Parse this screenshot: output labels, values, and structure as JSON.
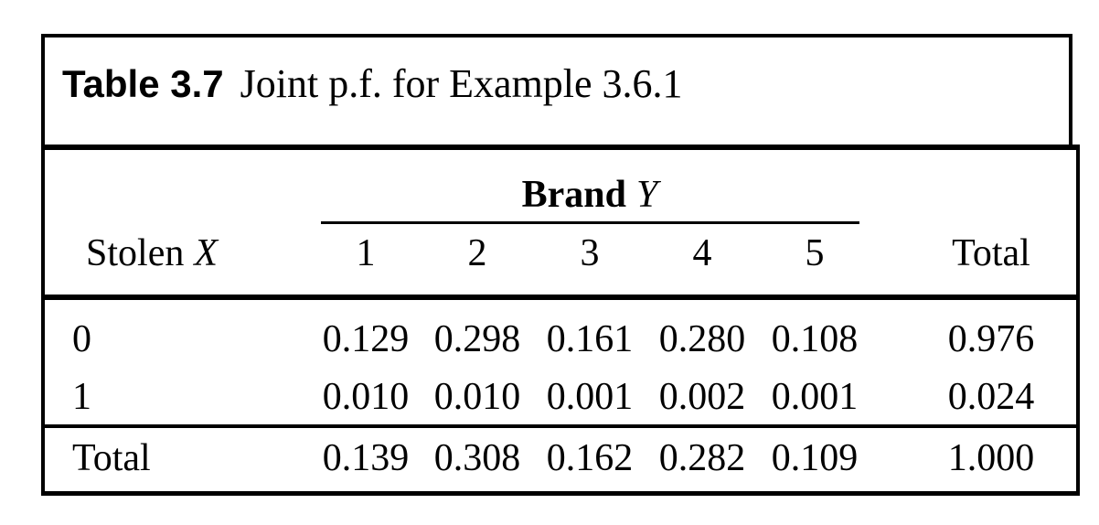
{
  "colors": {
    "ink": "#000000",
    "paper": "#ffffff"
  },
  "caption": {
    "label": "Table 3.7",
    "text": "Joint p.f. for Example 3.6.1"
  },
  "table": {
    "group_header": {
      "word": "Brand",
      "variable": "Y"
    },
    "row_header": {
      "word": "Stolen",
      "variable": "X"
    },
    "columns": [
      "1",
      "2",
      "3",
      "4",
      "5"
    ],
    "total_column_label": "Total",
    "rows": [
      {
        "label": "0",
        "values": [
          "0.129",
          "0.298",
          "0.161",
          "0.280",
          "0.108"
        ],
        "total": "0.976"
      },
      {
        "label": "1",
        "values": [
          "0.010",
          "0.010",
          "0.001",
          "0.002",
          "0.001"
        ],
        "total": "0.024"
      }
    ],
    "totals_row": {
      "label": "Total",
      "values": [
        "0.139",
        "0.308",
        "0.162",
        "0.282",
        "0.109"
      ],
      "total": "1.000"
    }
  }
}
